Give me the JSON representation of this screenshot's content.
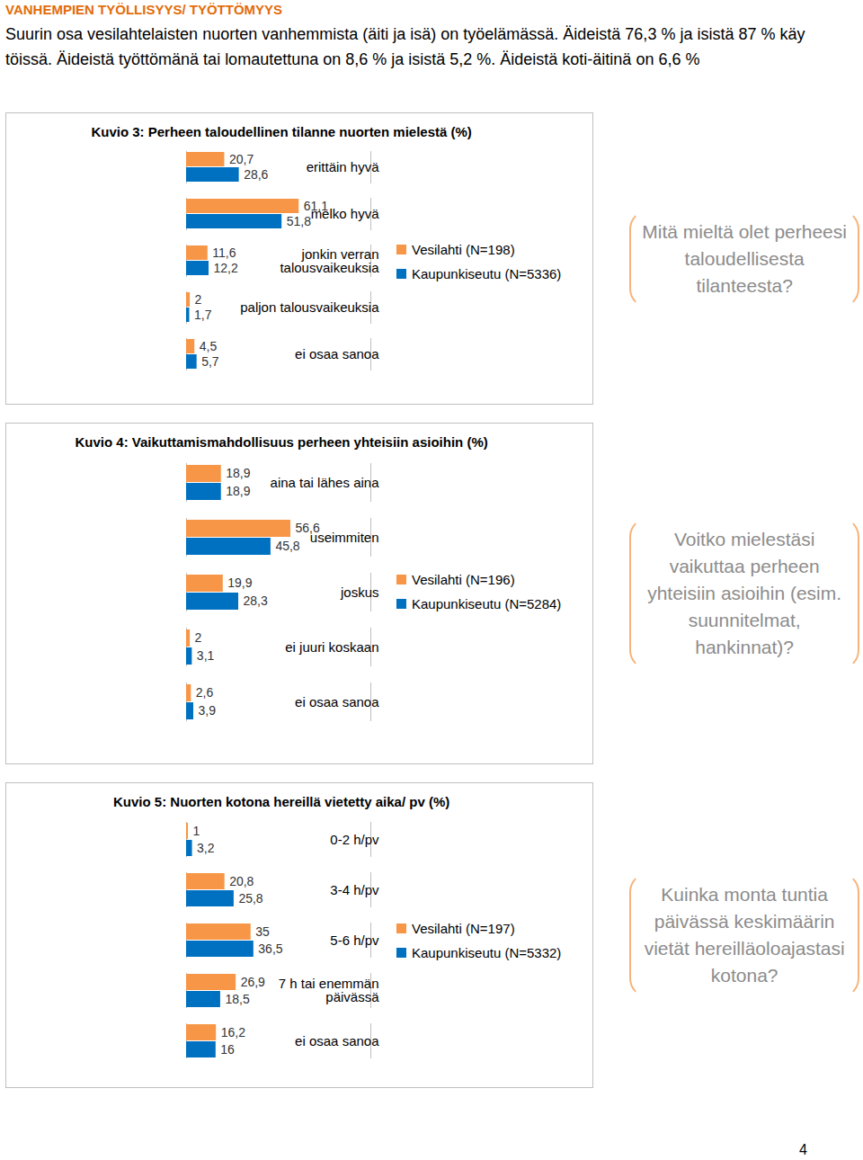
{
  "heading": "VANHEMPIEN TYÖLLISYYS/ TYÖTTÖMYYS",
  "intro": "Suurin osa vesilahtelaisten nuorten vanhemmista (äiti ja isä) on työelämässä. Äideistä 76,3 % ja isistä 87 % käy töissä. Äideistä työttömänä tai lomautettuna on 8,6 % ja isistä 5,2 %. Äideistä koti-äitinä on 6,6 %",
  "page_number": "4",
  "chart_data": [
    {
      "type": "bar",
      "orientation": "horizontal",
      "title": "Kuvio 3: Perheen taloudellinen tilanne nuorten mielestä (%)",
      "annotation": "Mitä mieltä olet perheesi taloudellisesta tilanteesta?",
      "categories": [
        "erittäin hyvä",
        "melko hyvä",
        "jonkin verran talousvaikeuksia",
        "paljon talousvaikeuksia",
        "ei osaa sanoa"
      ],
      "series": [
        {
          "name": "Vesilahti (N=198)",
          "color": "#F79646",
          "values": [
            20.7,
            61.1,
            11.6,
            2,
            4.5
          ],
          "value_labels": [
            "20,7",
            "61,1",
            "11,6",
            "2",
            "4,5"
          ]
        },
        {
          "name": "Kaupunkiseutu (N=5336)",
          "color": "#0070C0",
          "values": [
            28.6,
            51.8,
            12.2,
            1.7,
            5.7
          ],
          "value_labels": [
            "28,6",
            "51,8",
            "12,2",
            "1,7",
            "5,7"
          ]
        }
      ],
      "xlim": [
        0,
        100
      ],
      "xticks": [],
      "tick_labels": "y",
      "data_labels": true,
      "legend": "right"
    },
    {
      "type": "bar",
      "orientation": "horizontal",
      "title": "Kuvio 4: Vaikuttamismahdollisuus perheen yhteisiin asioihin (%)",
      "annotation": "Voitko mielestäsi vaikuttaa perheen yhteisiin asioihin (esim. suunnitelmat, hankinnat)?",
      "categories": [
        "aina tai lähes aina",
        "useimmiten",
        "joskus",
        "ei juuri koskaan",
        "ei osaa sanoa"
      ],
      "series": [
        {
          "name": "Vesilahti (N=196)",
          "color": "#F79646",
          "values": [
            18.9,
            56.6,
            19.9,
            2,
            2.6
          ],
          "value_labels": [
            "18,9",
            "56,6",
            "19,9",
            "2",
            "2,6"
          ]
        },
        {
          "name": "Kaupunkiseutu (N=5284)",
          "color": "#0070C0",
          "values": [
            18.9,
            45.8,
            28.3,
            3.1,
            3.9
          ],
          "value_labels": [
            "18,9",
            "45,8",
            "28,3",
            "3,1",
            "3,9"
          ]
        }
      ],
      "xlim": [
        0,
        100
      ],
      "xticks": [],
      "tick_labels": "y",
      "data_labels": true,
      "legend": "right"
    },
    {
      "type": "bar",
      "orientation": "horizontal",
      "title": "Kuvio 5: Nuorten kotona hereillä vietetty aika/ pv (%)",
      "annotation": "Kuinka monta tuntia päivässä keskimäärin vietät hereilläoloajastasi kotona?",
      "categories": [
        "0-2 h/pv",
        "3-4 h/pv",
        "5-6 h/pv",
        "7 h tai enemmän päivässä",
        "ei osaa sanoa"
      ],
      "series": [
        {
          "name": "Vesilahti (N=197)",
          "color": "#F79646",
          "values": [
            1,
            20.8,
            35,
            26.9,
            16.2
          ],
          "value_labels": [
            "1",
            "20,8",
            "35",
            "26,9",
            "16,2"
          ]
        },
        {
          "name": "Kaupunkiseutu (N=5332)",
          "color": "#0070C0",
          "values": [
            3.2,
            25.8,
            36.5,
            18.5,
            16
          ],
          "value_labels": [
            "3,2",
            "25,8",
            "36,5",
            "18,5",
            "16"
          ]
        }
      ],
      "xlim": [
        0,
        100
      ],
      "xticks": [],
      "tick_labels": "y",
      "data_labels": true,
      "legend": "right"
    }
  ]
}
